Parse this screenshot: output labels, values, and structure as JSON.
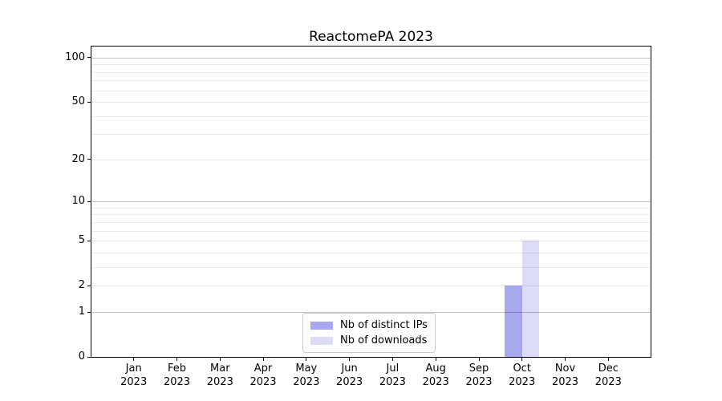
{
  "title": "ReactomePA 2023",
  "chart_data": {
    "type": "bar",
    "title": "ReactomePA 2023",
    "categories": [
      "Jan",
      "Feb",
      "Mar",
      "Apr",
      "May",
      "Jun",
      "Jul",
      "Aug",
      "Sep",
      "Oct",
      "Nov",
      "Dec"
    ],
    "category_sublabel": "2023",
    "series": [
      {
        "name": "Nb of distinct IPs",
        "color": "#a8a8ee",
        "values": [
          0,
          0,
          0,
          0,
          0,
          0,
          0,
          0,
          0,
          2,
          0,
          0
        ]
      },
      {
        "name": "Nb of downloads",
        "color": "#dcdcf6",
        "values": [
          0,
          0,
          0,
          0,
          0,
          0,
          0,
          0,
          0,
          5,
          0,
          0
        ]
      }
    ],
    "xlabel": "",
    "ylabel": "",
    "yscale": "log1p",
    "ylim": [
      0,
      119
    ],
    "ytick_values": [
      0,
      1,
      2,
      5,
      10,
      20,
      50,
      100
    ],
    "ytick_labels": [
      "0",
      "1",
      "2",
      "5",
      "10",
      "20",
      "50",
      "100"
    ],
    "minor_grid_values": [
      2,
      3,
      4,
      5,
      6,
      7,
      8,
      9,
      20,
      30,
      40,
      50,
      60,
      70,
      80,
      90
    ],
    "major_grid_values": [
      1,
      10,
      100
    ],
    "grid": true,
    "legend": {
      "position": "lower center",
      "items": [
        "Nb of distinct IPs",
        "Nb of downloads"
      ]
    },
    "colors": {
      "major_grid": "rgba(0,0,0,0.24)",
      "minor_grid": "rgba(0,0,0,0.08)",
      "axis": "#000000",
      "text": "#000000",
      "background": "#ffffff"
    }
  }
}
